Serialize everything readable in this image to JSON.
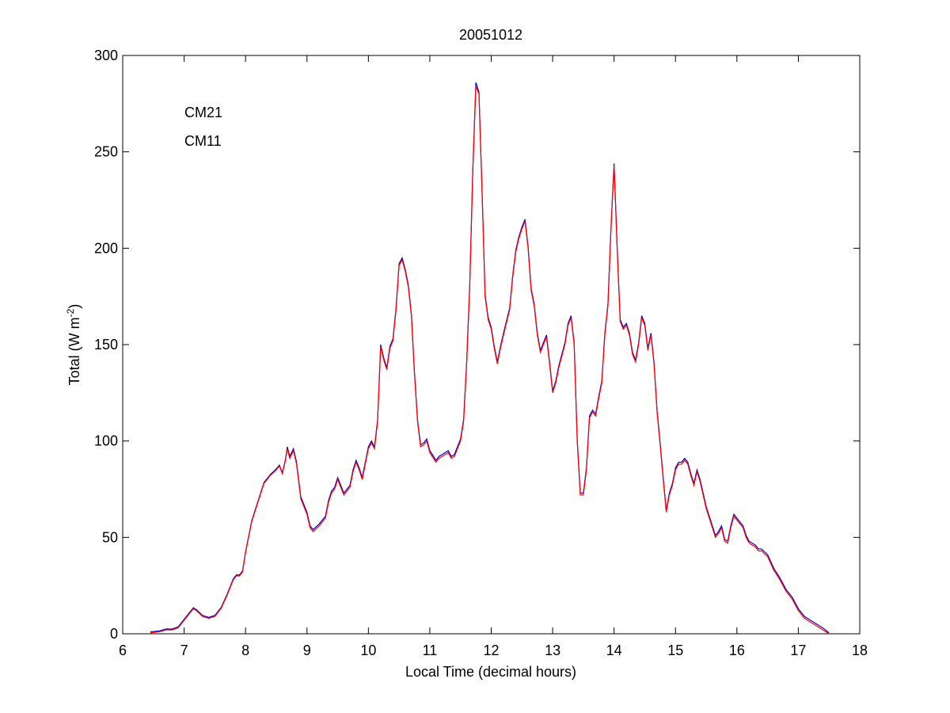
{
  "chart_data": {
    "type": "line",
    "title": "20051012",
    "xlabel": "Local Time (decimal hours)",
    "ylabel": {
      "text": "Total (W m",
      "superscript": "-2",
      "suffix": ")"
    },
    "xlim": [
      6,
      18
    ],
    "xticks": [
      6,
      7,
      8,
      9,
      10,
      11,
      12,
      13,
      14,
      15,
      16,
      17,
      18
    ],
    "ylim": [
      0,
      300
    ],
    "yticks": [
      0,
      50,
      100,
      150,
      200,
      250,
      300
    ],
    "grid": false,
    "legend": "upper left",
    "x": [
      6.45,
      6.6,
      6.7,
      6.8,
      6.9,
      7.0,
      7.1,
      7.15,
      7.2,
      7.3,
      7.4,
      7.5,
      7.6,
      7.7,
      7.8,
      7.85,
      7.9,
      7.95,
      8.0,
      8.1,
      8.2,
      8.3,
      8.4,
      8.5,
      8.55,
      8.6,
      8.65,
      8.68,
      8.72,
      8.78,
      8.83,
      8.9,
      9.0,
      9.05,
      9.1,
      9.2,
      9.3,
      9.35,
      9.4,
      9.45,
      9.5,
      9.55,
      9.6,
      9.7,
      9.75,
      9.8,
      9.85,
      9.9,
      10.0,
      10.05,
      10.1,
      10.15,
      10.2,
      10.25,
      10.3,
      10.35,
      10.4,
      10.45,
      10.5,
      10.55,
      10.6,
      10.65,
      10.7,
      10.75,
      10.8,
      10.85,
      10.9,
      10.95,
      11.0,
      11.1,
      11.15,
      11.2,
      11.3,
      11.35,
      11.4,
      11.5,
      11.55,
      11.6,
      11.65,
      11.7,
      11.75,
      11.8,
      11.85,
      11.9,
      11.95,
      12.0,
      12.05,
      12.1,
      12.15,
      12.2,
      12.3,
      12.35,
      12.4,
      12.45,
      12.5,
      12.55,
      12.6,
      12.65,
      12.7,
      12.75,
      12.8,
      12.85,
      12.9,
      12.95,
      13.0,
      13.05,
      13.1,
      13.15,
      13.2,
      13.25,
      13.3,
      13.35,
      13.4,
      13.45,
      13.5,
      13.55,
      13.6,
      13.65,
      13.7,
      13.75,
      13.8,
      13.85,
      13.9,
      13.95,
      14.0,
      14.05,
      14.1,
      14.15,
      14.2,
      14.25,
      14.3,
      14.35,
      14.4,
      14.45,
      14.5,
      14.55,
      14.6,
      14.65,
      14.7,
      14.75,
      14.8,
      14.85,
      14.9,
      14.95,
      15.0,
      15.05,
      15.1,
      15.15,
      15.2,
      15.25,
      15.3,
      15.35,
      15.4,
      15.5,
      15.6,
      15.65,
      15.7,
      15.75,
      15.8,
      15.85,
      15.9,
      15.95,
      16.0,
      16.1,
      16.15,
      16.2,
      16.25,
      16.3,
      16.35,
      16.4,
      16.5,
      16.6,
      16.7,
      16.8,
      16.9,
      17.0,
      17.1,
      17.2,
      17.3,
      17.4,
      17.5
    ],
    "series": [
      {
        "name": "CM21",
        "color": "#0000cc",
        "values": [
          1,
          1.5,
          2.5,
          2.5,
          3.5,
          7.5,
          11.5,
          13.5,
          12.5,
          9.5,
          8.5,
          9.5,
          13.5,
          20.5,
          28.5,
          30.5,
          30.5,
          32.5,
          42.5,
          58.5,
          68.5,
          78.5,
          82.5,
          85.5,
          87.5,
          83.5,
          90.5,
          97,
          92,
          96,
          89,
          71,
          63,
          56,
          54,
          57,
          61,
          69,
          74,
          76,
          81,
          77,
          73,
          77,
          85,
          90,
          86,
          81,
          97,
          100,
          97,
          111,
          150,
          143,
          138,
          149,
          153,
          169,
          192,
          195,
          189,
          181,
          166,
          136,
          111,
          98,
          99,
          101,
          95,
          90,
          92,
          93,
          95,
          92,
          93,
          101,
          111,
          141,
          181,
          241,
          286,
          281,
          231,
          176,
          164,
          159,
          149,
          141,
          149,
          156,
          169,
          186,
          199,
          206,
          211,
          215,
          201,
          179,
          171,
          156,
          147,
          151,
          155,
          141,
          126,
          131,
          139,
          145,
          151,
          161,
          165,
          151,
          101,
          73,
          73,
          86,
          113,
          116,
          114,
          123,
          131,
          156,
          171,
          211,
          244,
          201,
          163,
          159,
          161,
          156,
          146,
          142,
          151,
          165,
          161,
          148,
          156,
          141,
          116,
          99,
          81,
          64,
          73,
          78,
          86,
          89,
          89,
          91,
          89,
          83,
          78,
          85,
          80,
          66,
          56,
          51,
          53,
          56,
          49,
          48,
          56,
          62,
          60,
          56,
          51,
          48,
          47,
          46,
          44,
          44,
          41,
          34,
          29,
          23,
          19,
          13,
          9,
          7,
          5,
          3,
          0.5
        ]
      },
      {
        "name": "CM11",
        "color": "#ff0000",
        "values": [
          0.5,
          1,
          2,
          2,
          3,
          7,
          11,
          13,
          12,
          9,
          8,
          9,
          13,
          20,
          28,
          30,
          30,
          32,
          42,
          58,
          68,
          78,
          82,
          85,
          87,
          83,
          90,
          96,
          91,
          95,
          88,
          70,
          62,
          55,
          53,
          56,
          60,
          68,
          73,
          75,
          80,
          76,
          72,
          76,
          84,
          89,
          85,
          80,
          96,
          99,
          96,
          110,
          149,
          142,
          137,
          148,
          152,
          168,
          191,
          194,
          188,
          180,
          165,
          135,
          110,
          97,
          98,
          100,
          94,
          89,
          91,
          92,
          94,
          91,
          92,
          100,
          110,
          140,
          180,
          240,
          284,
          280,
          230,
          175,
          163,
          158,
          148,
          140,
          148,
          155,
          168,
          185,
          198,
          205,
          210,
          214,
          200,
          178,
          170,
          155,
          146,
          150,
          154,
          140,
          125,
          130,
          138,
          144,
          150,
          160,
          164,
          150,
          100,
          72,
          72,
          85,
          112,
          115,
          113,
          122,
          130,
          155,
          170,
          210,
          243,
          200,
          162,
          158,
          160,
          155,
          145,
          141,
          150,
          164,
          160,
          147,
          155,
          140,
          115,
          98,
          80,
          63,
          72,
          77,
          85,
          88,
          88,
          90,
          88,
          82,
          77,
          84,
          79,
          65,
          55,
          50,
          52,
          55,
          48,
          47,
          55,
          61,
          59,
          55,
          50,
          47,
          46,
          45,
          43,
          43,
          40,
          33,
          28,
          22,
          18,
          12,
          8,
          6,
          4,
          2,
          0
        ]
      }
    ]
  }
}
